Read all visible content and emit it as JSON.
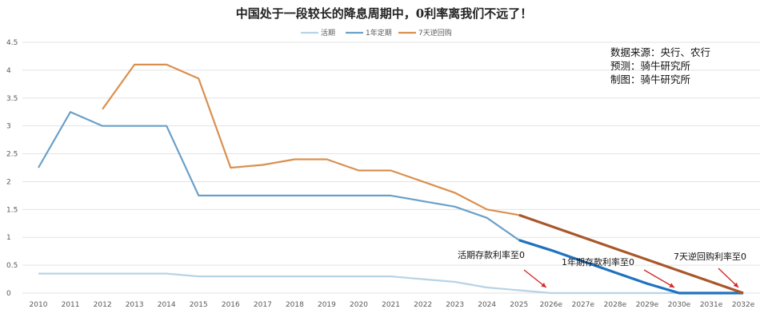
{
  "chart_data": {
    "type": "line",
    "title": "中国处于一段较长的降息周期中，0利率离我们不远了！",
    "categories": [
      "2010",
      "2011",
      "2012",
      "2013",
      "2014",
      "2015",
      "2016",
      "2017",
      "2018",
      "2019",
      "2020",
      "2021",
      "2022",
      "2023",
      "2024",
      "2025",
      "2026e",
      "2027e",
      "2028e",
      "2029e",
      "2030e",
      "2031e",
      "2032e"
    ],
    "y_ticks": [
      "0",
      "0.5",
      "1",
      "1.5",
      "2",
      "2.5",
      "3",
      "3.5",
      "4",
      "4.5"
    ],
    "ylim": [
      0,
      4.5
    ],
    "grid": true,
    "legend_position": "top",
    "series": [
      {
        "name": "活期",
        "color": "#b8d3e6",
        "values": [
          0.35,
          0.35,
          0.35,
          0.35,
          0.35,
          0.3,
          0.3,
          0.3,
          0.3,
          0.3,
          0.3,
          0.3,
          0.25,
          0.2,
          0.1,
          0.05,
          0,
          0,
          0,
          0,
          0,
          0,
          0
        ]
      },
      {
        "name": "1年定期",
        "color": "#6aa0c8",
        "projection_color": "#1f72be",
        "values": [
          2.25,
          3.25,
          3.0,
          3.0,
          3.0,
          1.75,
          1.75,
          1.75,
          1.75,
          1.75,
          1.75,
          1.75,
          1.65,
          1.55,
          1.35,
          0.95,
          0.77,
          0.57,
          0.37,
          0.17,
          0,
          0,
          0
        ]
      },
      {
        "name": "7天逆回购",
        "color": "#d9904e",
        "projection_color": "#a9572a",
        "values": [
          null,
          null,
          3.3,
          4.1,
          4.1,
          3.85,
          2.25,
          2.3,
          2.4,
          2.4,
          2.2,
          2.2,
          2.0,
          1.8,
          1.5,
          1.4,
          1.2,
          1.0,
          0.8,
          0.6,
          0.4,
          0.2,
          0
        ]
      }
    ],
    "projection_start_index": 16,
    "notes": [
      "数据来源：央行、农行",
      "预测：骑牛研究所",
      "制图：骑牛研究所"
    ],
    "annotations": [
      {
        "text": "活期存款利率至0",
        "target_index": 16
      },
      {
        "text": "1年期存款利率至0",
        "target_index": 20
      },
      {
        "text": "7天逆回购利率至0",
        "target_index": 22
      }
    ],
    "annotation_arrow_color": "#d32a2a"
  }
}
